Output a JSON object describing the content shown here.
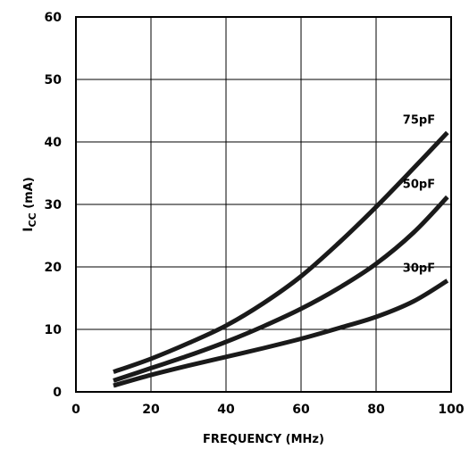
{
  "chart_data": {
    "type": "line",
    "title": "",
    "xlabel": "FREQUENCY (MHz)",
    "ylabel_main": "I",
    "ylabel_sub": "CC",
    "ylabel_unit": " (mA)",
    "xlim": [
      0,
      100
    ],
    "ylim": [
      0,
      60
    ],
    "xticks": [
      0,
      20,
      40,
      60,
      80,
      100
    ],
    "yticks": [
      0,
      10,
      20,
      30,
      40,
      50,
      60
    ],
    "grid": true,
    "line_color": "#1a1a1a",
    "series": [
      {
        "name": "75pF",
        "x": [
          10,
          20,
          30,
          40,
          50,
          60,
          70,
          80,
          90,
          99
        ],
        "y": [
          3.2,
          5.3,
          7.8,
          10.6,
          14.2,
          18.5,
          23.8,
          29.6,
          35.8,
          41.5
        ]
      },
      {
        "name": "50pF",
        "x": [
          10,
          20,
          30,
          40,
          50,
          60,
          70,
          80,
          90,
          99
        ],
        "y": [
          1.8,
          3.8,
          5.8,
          8.0,
          10.5,
          13.3,
          16.6,
          20.5,
          25.5,
          31.2
        ]
      },
      {
        "name": "30pF",
        "x": [
          10,
          20,
          30,
          40,
          50,
          60,
          70,
          80,
          90,
          99
        ],
        "y": [
          1.0,
          2.7,
          4.2,
          5.6,
          7.0,
          8.5,
          10.2,
          12.0,
          14.5,
          17.8
        ]
      }
    ]
  }
}
